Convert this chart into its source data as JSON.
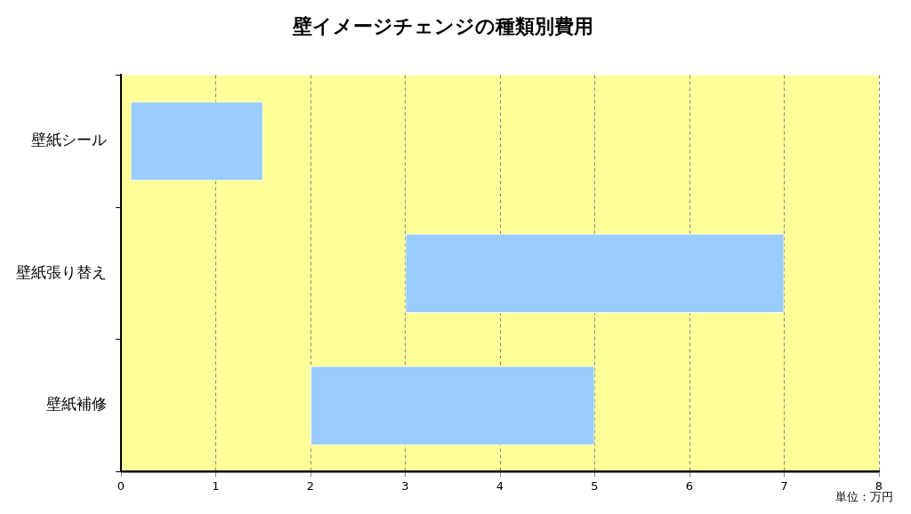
{
  "chart_data": {
    "type": "bar",
    "orientation": "horizontal",
    "title": "壁イメージチェンジの種類別費用",
    "categories": [
      "壁紙シール",
      "壁紙張り替え",
      "壁紙補修"
    ],
    "values": [
      1.4,
      4,
      3
    ],
    "base": [
      0.1,
      3,
      2
    ],
    "color": "#99ccff",
    "xlim": [
      0,
      8
    ],
    "xticks": [
      0,
      1,
      2,
      3,
      4,
      5,
      6,
      7,
      8
    ],
    "grid": "x",
    "legend": false,
    "annotations": [
      "単位：万円"
    ]
  }
}
